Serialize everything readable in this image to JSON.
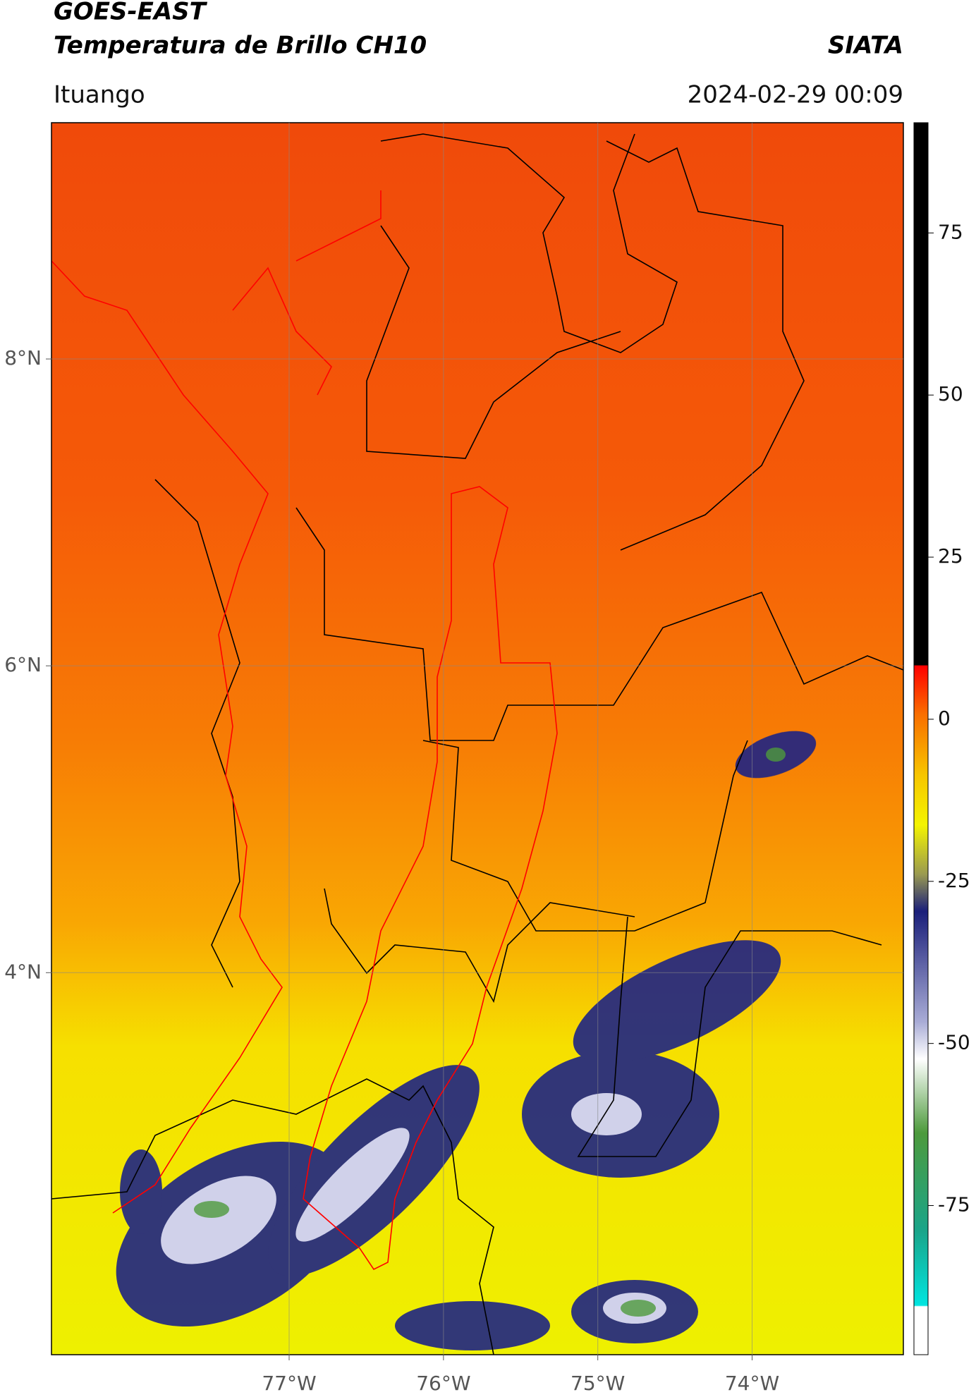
{
  "chart_data": {
    "type": "map",
    "title": "GOES-EAST",
    "subtitle": "Temperatura de Brillo CH10",
    "source": "SIATA",
    "location": "Ituango",
    "datetime": "2024-02-29 00:09",
    "xlim": [
      -78.54,
      -73.02
    ],
    "ylim": [
      1.51,
      9.54
    ],
    "xticks": [
      {
        "value": -77,
        "label": "77°W"
      },
      {
        "value": -76,
        "label": "76°W"
      },
      {
        "value": -75,
        "label": "75°W"
      },
      {
        "value": -74,
        "label": "74°W"
      }
    ],
    "yticks": [
      {
        "value": 8,
        "label": "8°N"
      },
      {
        "value": 6,
        "label": "6°N"
      },
      {
        "value": 4,
        "label": "4°N"
      }
    ],
    "grid": true,
    "colorbar": {
      "lim": [
        -98,
        92
      ],
      "ticks": [
        75,
        50,
        25,
        0,
        -25,
        -50,
        -75
      ]
    }
  }
}
